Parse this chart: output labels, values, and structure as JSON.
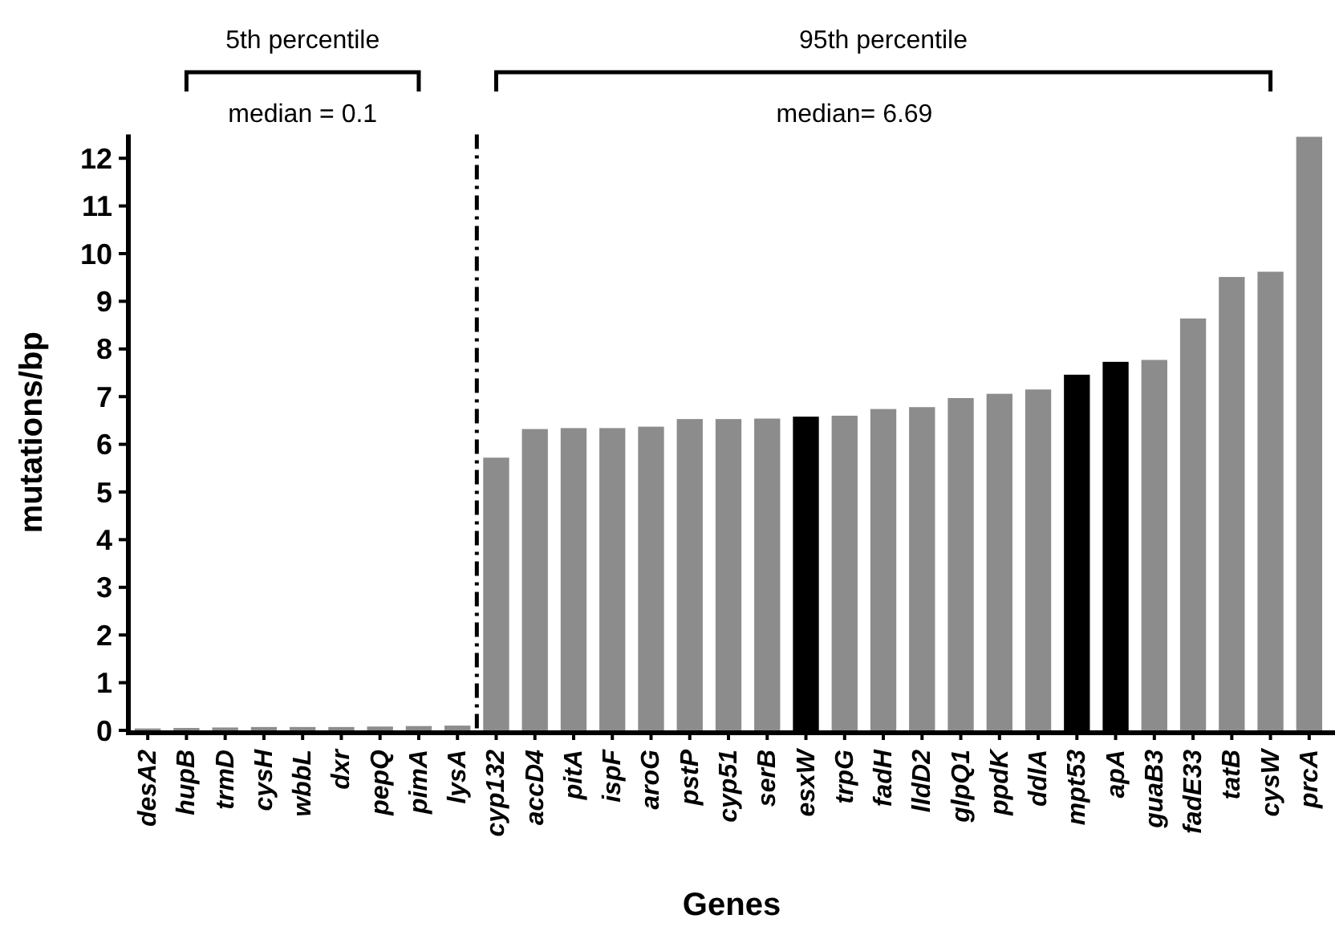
{
  "chart_data": {
    "type": "bar",
    "xlabel": "Genes",
    "ylabel": "mutations/bp",
    "categories": [
      "desA2",
      "hupB",
      "trmD",
      "cysH",
      "wbbL",
      "dxr",
      "pepQ",
      "pimA",
      "lysA",
      "cyp132",
      "accD4",
      "pitA",
      "ispF",
      "aroG",
      "pstP",
      "cyp51",
      "serB",
      "esxW",
      "trpG",
      "fadH",
      "lldD2",
      "glpQ1",
      "ppdK",
      "ddlA",
      "mpt53",
      "apA",
      "guaB3",
      "fadE33",
      "tatB",
      "cysW",
      "prcA"
    ],
    "values": [
      0.04,
      0.05,
      0.06,
      0.07,
      0.07,
      0.07,
      0.08,
      0.09,
      0.1,
      5.72,
      6.32,
      6.34,
      6.34,
      6.37,
      6.53,
      6.53,
      6.54,
      6.58,
      6.6,
      6.74,
      6.78,
      6.97,
      7.06,
      7.15,
      7.46,
      7.73,
      7.77,
      8.64,
      9.51,
      9.62,
      12.45
    ],
    "colors": [
      "#8c8c8c",
      "#8c8c8c",
      "#8c8c8c",
      "#8c8c8c",
      "#8c8c8c",
      "#8c8c8c",
      "#8c8c8c",
      "#8c8c8c",
      "#8c8c8c",
      "#8c8c8c",
      "#8c8c8c",
      "#8c8c8c",
      "#8c8c8c",
      "#8c8c8c",
      "#8c8c8c",
      "#8c8c8c",
      "#8c8c8c",
      "#000000",
      "#8c8c8c",
      "#8c8c8c",
      "#8c8c8c",
      "#8c8c8c",
      "#8c8c8c",
      "#8c8c8c",
      "#000000",
      "#000000",
      "#8c8c8c",
      "#8c8c8c",
      "#8c8c8c",
      "#8c8c8c",
      "#8c8c8c"
    ],
    "ylim": [
      0,
      12.5
    ],
    "yticks": [
      0,
      1,
      2,
      3,
      4,
      5,
      6,
      7,
      8,
      9,
      10,
      11,
      12
    ],
    "grid": false,
    "annotations": [
      "5th percentile",
      "median = 0.1",
      "95th percentile",
      "median= 6.69"
    ]
  }
}
